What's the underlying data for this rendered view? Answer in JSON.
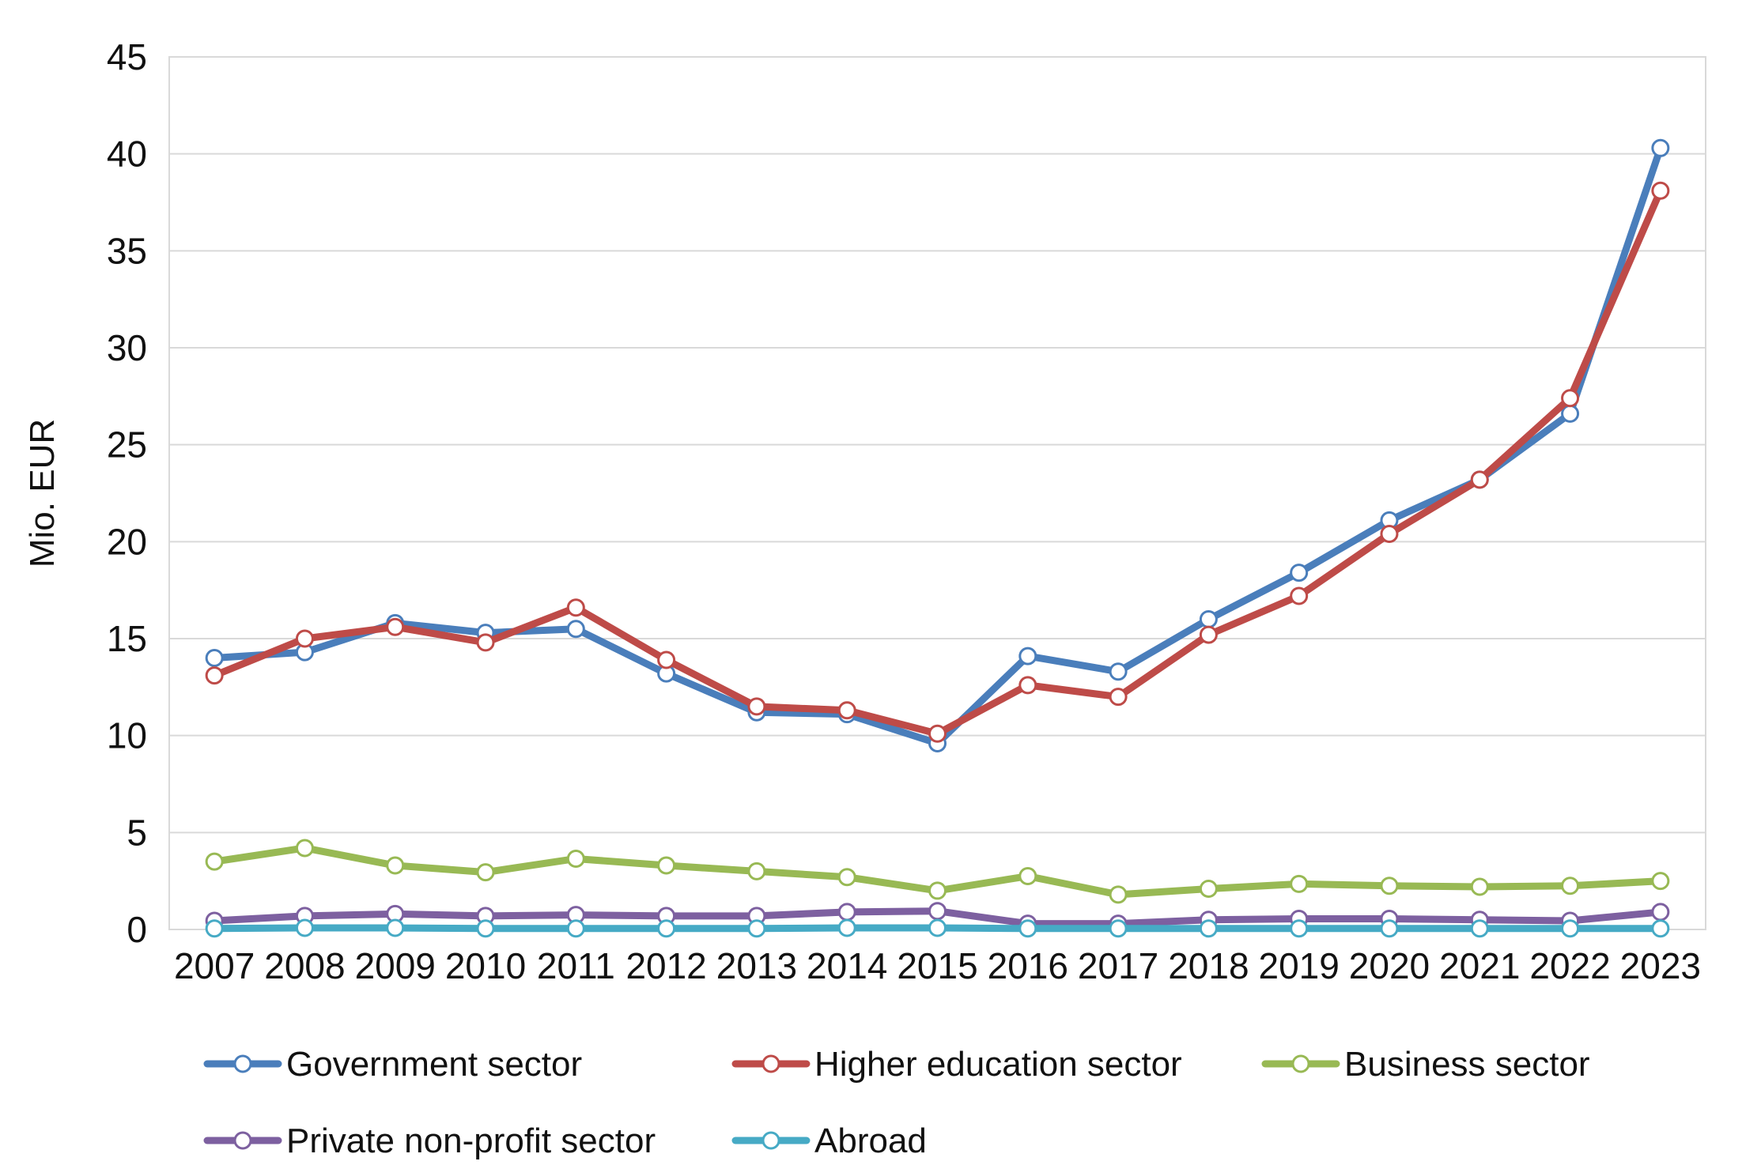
{
  "chart_data": {
    "type": "line",
    "title": "",
    "xlabel": "",
    "ylabel": "Mio. EUR",
    "ylim": [
      0,
      45
    ],
    "yticks": [
      0,
      5,
      10,
      15,
      20,
      25,
      30,
      35,
      40,
      45
    ],
    "grid": "horizontal",
    "legend_position": "bottom",
    "categories": [
      "2007",
      "2008",
      "2009",
      "2010",
      "2011",
      "2012",
      "2013",
      "2014",
      "2015",
      "2016",
      "2017",
      "2018",
      "2019",
      "2020",
      "2021",
      "2022",
      "2023"
    ],
    "series": [
      {
        "name": "Government sector",
        "color": "#4A7EBB",
        "values": [
          14.0,
          14.3,
          15.8,
          15.3,
          15.5,
          13.2,
          11.2,
          11.1,
          9.6,
          14.1,
          13.3,
          16.0,
          18.4,
          21.1,
          23.2,
          26.6,
          40.3
        ]
      },
      {
        "name": "Higher education sector",
        "color": "#BE4B48",
        "values": [
          13.1,
          15.0,
          15.6,
          14.8,
          16.6,
          13.9,
          11.5,
          11.3,
          10.1,
          12.6,
          12.0,
          15.2,
          17.2,
          20.4,
          23.2,
          27.4,
          38.1
        ]
      },
      {
        "name": "Business sector",
        "color": "#98B954",
        "values": [
          3.5,
          4.2,
          3.3,
          2.95,
          3.65,
          3.3,
          3.0,
          2.7,
          2.0,
          2.75,
          1.8,
          2.1,
          2.35,
          2.25,
          2.2,
          2.25,
          2.5
        ]
      },
      {
        "name": "Private non-profit sector",
        "color": "#7D60A0",
        "values": [
          0.45,
          0.7,
          0.8,
          0.7,
          0.75,
          0.7,
          0.7,
          0.9,
          0.95,
          0.3,
          0.3,
          0.5,
          0.55,
          0.55,
          0.5,
          0.45,
          0.9
        ]
      },
      {
        "name": "Abroad",
        "color": "#46AAC5",
        "values": [
          0.05,
          0.08,
          0.08,
          0.05,
          0.05,
          0.05,
          0.05,
          0.08,
          0.08,
          0.05,
          0.05,
          0.05,
          0.05,
          0.05,
          0.05,
          0.05,
          0.05
        ]
      }
    ]
  }
}
